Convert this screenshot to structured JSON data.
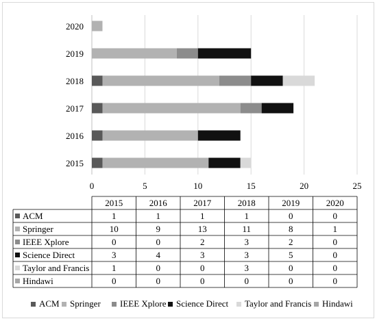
{
  "chart_data": {
    "type": "bar",
    "orientation": "horizontal",
    "stacked": true,
    "categories": [
      "2015",
      "2016",
      "2017",
      "2018",
      "2019",
      "2020"
    ],
    "series": [
      {
        "name": "ACM",
        "color": "#595959",
        "values": [
          1,
          1,
          1,
          1,
          0,
          0
        ]
      },
      {
        "name": "Springer",
        "color": "#b2b2b2",
        "values": [
          10,
          9,
          13,
          11,
          8,
          1
        ]
      },
      {
        "name": "IEEE Xplore",
        "color": "#8c8c8c",
        "values": [
          0,
          0,
          2,
          3,
          2,
          0
        ]
      },
      {
        "name": "Science Direct",
        "color": "#111111",
        "values": [
          3,
          4,
          3,
          3,
          5,
          0
        ]
      },
      {
        "name": "Taylor and Francis",
        "color": "#d9d9d9",
        "values": [
          1,
          0,
          0,
          3,
          0,
          0
        ]
      },
      {
        "name": "Hindawi",
        "color": "#a6a6a6",
        "values": [
          0,
          0,
          0,
          0,
          0,
          0
        ]
      }
    ],
    "xlim": [
      0,
      25
    ],
    "x_ticks": [
      "0",
      "5",
      "10",
      "15",
      "20",
      "25"
    ],
    "grid": "vertical",
    "data_table": true,
    "legend_position": "bottom"
  }
}
